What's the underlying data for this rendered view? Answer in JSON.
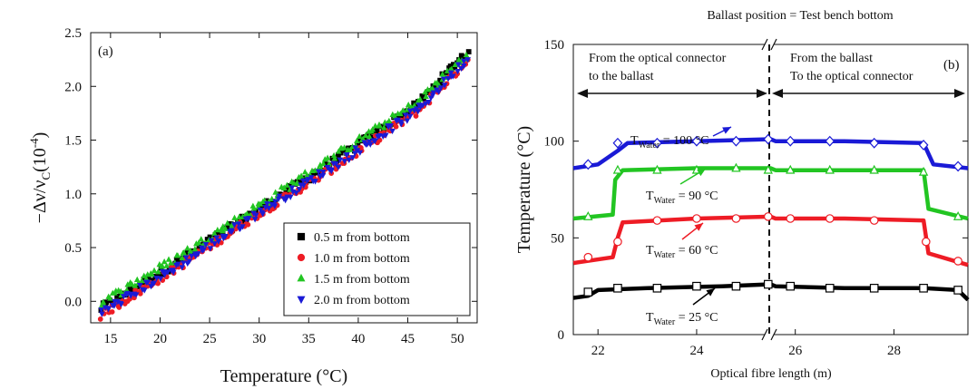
{
  "chart_data": [
    {
      "type": "scatter",
      "panel_label": "(a)",
      "title": "",
      "xlabel": "Temperature (°C)",
      "ylabel_main": "−Δν/ν",
      "ylabel_sub": "C",
      "ylabel_unit": "(10",
      "ylabel_exp": "-4",
      "ylabel_close": ")",
      "xlim": [
        13,
        52
      ],
      "ylim": [
        -0.2,
        2.5
      ],
      "xticks": [
        "15",
        "20",
        "25",
        "30",
        "35",
        "40",
        "45",
        "50"
      ],
      "yticks": [
        "0.0",
        "0.5",
        "1.0",
        "1.5",
        "2.0",
        "2.5"
      ],
      "legend_position": "bottom-right",
      "series": [
        {
          "name": "0.5 m from bottom",
          "marker": "square",
          "color": "#000000",
          "x": [
            14,
            22,
            30,
            38,
            46,
            51
          ],
          "y": [
            -0.07,
            0.38,
            0.86,
            1.33,
            1.83,
            2.33
          ]
        },
        {
          "name": "1.0 m from bottom",
          "marker": "circle",
          "color": "#ee1c25",
          "x": [
            14,
            22,
            30,
            38,
            46,
            51
          ],
          "y": [
            -0.13,
            0.33,
            0.82,
            1.27,
            1.77,
            2.24
          ]
        },
        {
          "name": "1.5 m from bottom",
          "marker": "triangle-up",
          "color": "#22c522",
          "x": [
            14,
            22,
            30,
            38,
            46,
            51
          ],
          "y": [
            -0.02,
            0.42,
            0.89,
            1.37,
            1.85,
            2.3
          ]
        },
        {
          "name": "2.0 m from bottom",
          "marker": "triangle-down",
          "color": "#1a1ad6",
          "x": [
            14,
            22,
            30,
            38,
            46,
            51
          ],
          "y": [
            -0.11,
            0.34,
            0.83,
            1.29,
            1.78,
            2.26
          ]
        }
      ]
    },
    {
      "type": "line",
      "panel_label": "(b)",
      "title": "",
      "top_annotation": "Ballast position = Test bench bottom",
      "xlabel": "Optical fibre length (m)",
      "ylabel": "Temperature (°C)",
      "xlim": [
        21.5,
        29.5
      ],
      "x_break": [
        25.5,
        25.6
      ],
      "ylim": [
        0,
        150
      ],
      "xticks": [
        "22",
        "24",
        "26",
        "28"
      ],
      "yticks": [
        "0",
        "50",
        "100",
        "150"
      ],
      "ballast_x": 25.55,
      "region_left_line1": "From the optical connector",
      "region_left_line2": "to the ballast",
      "region_right_line1": "From the ballast",
      "region_right_line2": "To the optical connector",
      "series": [
        {
          "name": "T_Water = 100 °C",
          "label_prefix": "T",
          "label_sub": "Water",
          "label_value": " = 100 °C",
          "color": "#1a1ad6",
          "marker": "diamond",
          "x": [
            21.5,
            22.0,
            22.4,
            22.6,
            24.0,
            25.5,
            25.6,
            27.0,
            28.6,
            28.8,
            29.5
          ],
          "y": [
            86,
            88,
            95,
            99,
            100,
            101,
            100,
            100,
            99,
            88,
            86
          ],
          "marker_x": [
            21.8,
            22.4,
            23.2,
            24.0,
            24.8,
            25.45,
            25.9,
            26.7,
            27.6,
            28.6,
            29.3
          ],
          "marker_y": [
            88,
            99,
            99,
            100,
            100,
            101,
            100,
            100,
            99,
            98,
            87
          ]
        },
        {
          "name": "T_Water = 90 °C",
          "label_prefix": "T",
          "label_sub": "Water",
          "label_value": " = 90 °C",
          "color": "#22c522",
          "marker": "triangle-up",
          "x": [
            21.5,
            22.3,
            22.35,
            22.5,
            24.0,
            25.5,
            25.6,
            27.0,
            28.6,
            28.7,
            29.5
          ],
          "y": [
            60,
            62,
            80,
            85,
            86,
            86,
            85,
            85,
            85,
            65,
            60
          ],
          "marker_x": [
            21.8,
            22.4,
            23.2,
            24.0,
            24.8,
            25.45,
            25.9,
            26.7,
            27.6,
            28.6,
            29.3
          ],
          "marker_y": [
            61,
            85,
            85,
            85,
            86,
            85,
            85,
            85,
            85,
            84,
            61
          ]
        },
        {
          "name": "T_Water = 60 °C",
          "label_prefix": "T",
          "label_sub": "Water",
          "label_value": " = 60 °C",
          "color": "#ee1c25",
          "marker": "circle",
          "x": [
            21.5,
            22.3,
            22.4,
            22.5,
            24.0,
            25.5,
            25.6,
            27.0,
            28.6,
            28.7,
            29.5
          ],
          "y": [
            37,
            40,
            50,
            58,
            60,
            61,
            60,
            60,
            59,
            42,
            36
          ],
          "marker_x": [
            21.8,
            22.4,
            23.2,
            24.0,
            24.8,
            25.45,
            25.9,
            26.7,
            27.6,
            28.65,
            29.3
          ],
          "marker_y": [
            40,
            48,
            59,
            60,
            60,
            61,
            60,
            60,
            59,
            48,
            38
          ]
        },
        {
          "name": "T_Water = 25 °C",
          "label_prefix": "T",
          "label_sub": "Water",
          "label_value": " = 25 °C",
          "color": "#000000",
          "marker": "square",
          "x": [
            21.5,
            21.8,
            22.0,
            23.0,
            24.5,
            25.5,
            25.6,
            27.0,
            28.6,
            29.3,
            29.5
          ],
          "y": [
            19,
            20,
            23,
            24,
            25,
            26,
            25,
            24,
            24,
            23,
            18
          ],
          "marker_x": [
            21.8,
            22.4,
            23.2,
            24.0,
            24.8,
            25.45,
            25.9,
            26.7,
            27.6,
            28.6,
            29.3
          ],
          "marker_y": [
            22,
            24,
            24,
            25,
            25,
            26,
            25,
            24,
            24,
            24,
            23
          ]
        }
      ]
    }
  ]
}
